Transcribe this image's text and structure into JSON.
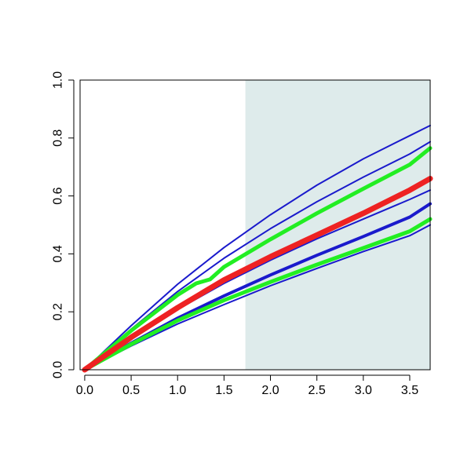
{
  "chart_data": {
    "type": "line",
    "xlim": [
      -0.05,
      3.72
    ],
    "ylim": [
      0.0,
      1.0
    ],
    "xticks": [
      {
        "value": 0.0,
        "label": "0.0"
      },
      {
        "value": 0.5,
        "label": "0.5"
      },
      {
        "value": 1.0,
        "label": "1.0"
      },
      {
        "value": 1.5,
        "label": "1.5"
      },
      {
        "value": 2.0,
        "label": "2.0"
      },
      {
        "value": 2.5,
        "label": "2.5"
      },
      {
        "value": 3.0,
        "label": "3.0"
      },
      {
        "value": 3.5,
        "label": "3.5"
      }
    ],
    "yticks": [
      {
        "value": 0.0,
        "label": "0.0"
      },
      {
        "value": 0.2,
        "label": "0.2"
      },
      {
        "value": 0.4,
        "label": "0.4"
      },
      {
        "value": 0.6,
        "label": "0.6"
      },
      {
        "value": 0.8,
        "label": "0.8"
      },
      {
        "value": 1.0,
        "label": "1.0"
      }
    ],
    "shaded_region": {
      "x_from": 1.73,
      "x_to": 3.72,
      "color": "#deebeb"
    },
    "grid": false,
    "series": [
      {
        "color": "#1a1acc",
        "width": "thin",
        "x": [
          0,
          0.5,
          1.0,
          1.5,
          2.0,
          2.5,
          3.0,
          3.5,
          3.72
        ],
        "y": [
          0,
          0.152,
          0.295,
          0.422,
          0.535,
          0.637,
          0.728,
          0.808,
          0.843
        ]
      },
      {
        "color": "#1a1acc",
        "width": "thin",
        "x": [
          0,
          0.5,
          1.0,
          1.5,
          2.0,
          2.5,
          3.0,
          3.5,
          3.72
        ],
        "y": [
          0,
          0.14,
          0.27,
          0.385,
          0.487,
          0.58,
          0.665,
          0.745,
          0.787
        ]
      },
      {
        "color": "#1a1acc",
        "width": "thin",
        "x": [
          0,
          0.5,
          1.0,
          1.5,
          2.0,
          2.5,
          3.0,
          3.5,
          3.72
        ],
        "y": [
          0,
          0.108,
          0.208,
          0.298,
          0.378,
          0.452,
          0.52,
          0.588,
          0.62
        ]
      },
      {
        "color": "#1a1acc",
        "width": "thin",
        "x": [
          0,
          0.5,
          1.0,
          1.5,
          2.0,
          2.5,
          3.0,
          3.5,
          3.72
        ],
        "y": [
          0,
          0.082,
          0.158,
          0.225,
          0.29,
          0.35,
          0.408,
          0.463,
          0.5
        ]
      },
      {
        "color": "#1a1acc",
        "width": "medium",
        "x": [
          0,
          0.5,
          1.0,
          1.5,
          2.0,
          2.5,
          3.0,
          3.5,
          3.72
        ],
        "y": [
          0,
          0.092,
          0.178,
          0.255,
          0.327,
          0.395,
          0.46,
          0.527,
          0.573
        ]
      },
      {
        "color": "#22ee22",
        "width": "thick",
        "x": [
          0,
          0.5,
          1.0,
          1.2,
          1.35,
          1.5,
          2.0,
          2.5,
          3.0,
          3.5,
          3.72
        ],
        "y": [
          0,
          0.135,
          0.258,
          0.298,
          0.312,
          0.355,
          0.45,
          0.54,
          0.625,
          0.708,
          0.765
        ]
      },
      {
        "color": "#22ee22",
        "width": "thick",
        "x": [
          0,
          0.5,
          1.0,
          1.5,
          2.0,
          2.5,
          3.0,
          3.5,
          3.72
        ],
        "y": [
          0,
          0.088,
          0.17,
          0.24,
          0.303,
          0.363,
          0.42,
          0.478,
          0.52
        ]
      },
      {
        "color": "#ee2222",
        "width": "thicker",
        "x": [
          0,
          0.5,
          1.0,
          1.5,
          2.0,
          2.5,
          3.0,
          3.5,
          3.72
        ],
        "y": [
          0,
          0.112,
          0.214,
          0.31,
          0.39,
          0.465,
          0.54,
          0.62,
          0.66
        ]
      }
    ]
  }
}
